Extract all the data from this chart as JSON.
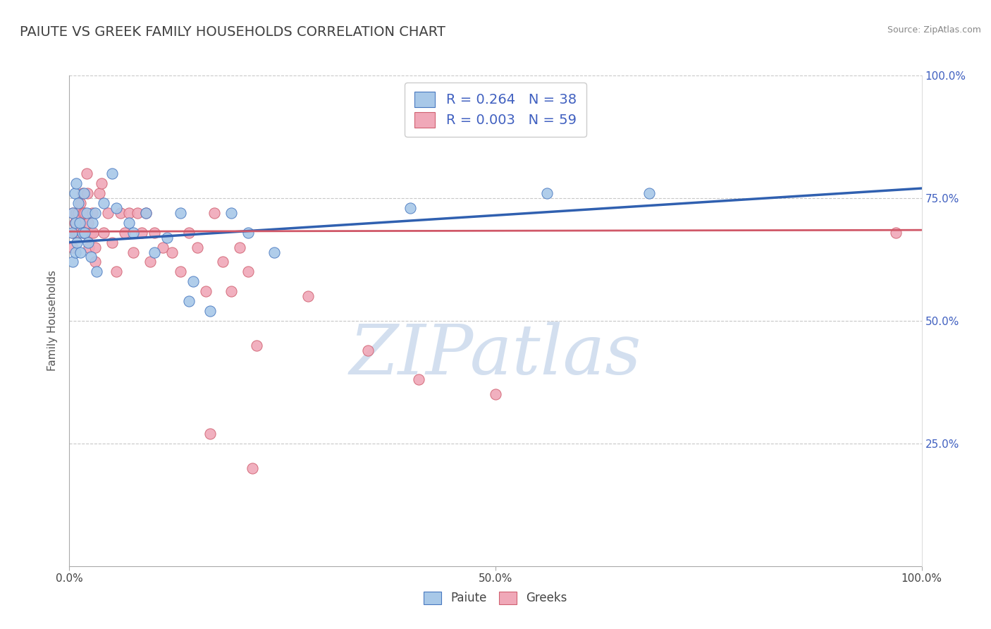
{
  "title": "PAIUTE VS GREEK FAMILY HOUSEHOLDS CORRELATION CHART",
  "source": "Source: ZipAtlas.com",
  "ylabel": "Family Households",
  "xlim": [
    0.0,
    1.0
  ],
  "ylim": [
    0.0,
    1.0
  ],
  "xticks": [
    0.0,
    0.5,
    1.0
  ],
  "xtick_labels": [
    "0.0%",
    "50.0%",
    "100.0%"
  ],
  "right_yticks": [
    0.25,
    0.5,
    0.75,
    1.0
  ],
  "right_ytick_labels": [
    "25.0%",
    "50.0%",
    "75.0%",
    "100.0%"
  ],
  "legend_line1": "R = 0.264   N = 38",
  "legend_line2": "R = 0.003   N = 59",
  "bottom_legend_labels": [
    "Paiute",
    "Greeks"
  ],
  "blue_color": "#a8c8e8",
  "pink_color": "#f0a8b8",
  "blue_edge_color": "#4878c0",
  "pink_edge_color": "#d06070",
  "blue_line_color": "#3060b0",
  "pink_line_color": "#d05868",
  "blue_scatter": [
    [
      0.003,
      0.68
    ],
    [
      0.004,
      0.62
    ],
    [
      0.004,
      0.72
    ],
    [
      0.006,
      0.76
    ],
    [
      0.007,
      0.7
    ],
    [
      0.007,
      0.64
    ],
    [
      0.008,
      0.78
    ],
    [
      0.009,
      0.66
    ],
    [
      0.01,
      0.74
    ],
    [
      0.012,
      0.7
    ],
    [
      0.013,
      0.64
    ],
    [
      0.015,
      0.68
    ],
    [
      0.017,
      0.76
    ],
    [
      0.018,
      0.68
    ],
    [
      0.02,
      0.72
    ],
    [
      0.022,
      0.66
    ],
    [
      0.025,
      0.63
    ],
    [
      0.027,
      0.7
    ],
    [
      0.03,
      0.72
    ],
    [
      0.032,
      0.6
    ],
    [
      0.04,
      0.74
    ],
    [
      0.05,
      0.8
    ],
    [
      0.055,
      0.73
    ],
    [
      0.07,
      0.7
    ],
    [
      0.075,
      0.68
    ],
    [
      0.09,
      0.72
    ],
    [
      0.1,
      0.64
    ],
    [
      0.115,
      0.67
    ],
    [
      0.13,
      0.72
    ],
    [
      0.14,
      0.54
    ],
    [
      0.145,
      0.58
    ],
    [
      0.165,
      0.52
    ],
    [
      0.19,
      0.72
    ],
    [
      0.21,
      0.68
    ],
    [
      0.24,
      0.64
    ],
    [
      0.4,
      0.73
    ],
    [
      0.56,
      0.76
    ],
    [
      0.68,
      0.76
    ]
  ],
  "pink_scatter": [
    [
      0.004,
      0.68
    ],
    [
      0.004,
      0.65
    ],
    [
      0.004,
      0.72
    ],
    [
      0.006,
      0.7
    ],
    [
      0.007,
      0.68
    ],
    [
      0.008,
      0.72
    ],
    [
      0.009,
      0.68
    ],
    [
      0.01,
      0.72
    ],
    [
      0.011,
      0.68
    ],
    [
      0.013,
      0.74
    ],
    [
      0.014,
      0.7
    ],
    [
      0.015,
      0.76
    ],
    [
      0.016,
      0.72
    ],
    [
      0.017,
      0.68
    ],
    [
      0.018,
      0.72
    ],
    [
      0.019,
      0.68
    ],
    [
      0.02,
      0.8
    ],
    [
      0.021,
      0.76
    ],
    [
      0.022,
      0.7
    ],
    [
      0.023,
      0.65
    ],
    [
      0.025,
      0.68
    ],
    [
      0.027,
      0.72
    ],
    [
      0.028,
      0.68
    ],
    [
      0.03,
      0.62
    ],
    [
      0.03,
      0.65
    ],
    [
      0.035,
      0.76
    ],
    [
      0.038,
      0.78
    ],
    [
      0.04,
      0.68
    ],
    [
      0.045,
      0.72
    ],
    [
      0.05,
      0.66
    ],
    [
      0.055,
      0.6
    ],
    [
      0.06,
      0.72
    ],
    [
      0.065,
      0.68
    ],
    [
      0.07,
      0.72
    ],
    [
      0.075,
      0.64
    ],
    [
      0.08,
      0.72
    ],
    [
      0.085,
      0.68
    ],
    [
      0.09,
      0.72
    ],
    [
      0.095,
      0.62
    ],
    [
      0.1,
      0.68
    ],
    [
      0.11,
      0.65
    ],
    [
      0.12,
      0.64
    ],
    [
      0.13,
      0.6
    ],
    [
      0.14,
      0.68
    ],
    [
      0.15,
      0.65
    ],
    [
      0.16,
      0.56
    ],
    [
      0.17,
      0.72
    ],
    [
      0.18,
      0.62
    ],
    [
      0.19,
      0.56
    ],
    [
      0.2,
      0.65
    ],
    [
      0.21,
      0.6
    ],
    [
      0.22,
      0.45
    ],
    [
      0.28,
      0.55
    ],
    [
      0.35,
      0.44
    ],
    [
      0.41,
      0.38
    ],
    [
      0.165,
      0.27
    ],
    [
      0.215,
      0.2
    ],
    [
      0.5,
      0.35
    ],
    [
      0.97,
      0.68
    ]
  ],
  "blue_line": [
    [
      0.0,
      0.66
    ],
    [
      1.0,
      0.77
    ]
  ],
  "pink_line": [
    [
      0.0,
      0.682
    ],
    [
      1.0,
      0.685
    ]
  ],
  "watermark": "ZIPatlas",
  "watermark_color": "#c8d8ec",
  "background_color": "#ffffff",
  "grid_color": "#c8c8c8",
  "title_color": "#404040",
  "title_fontsize": 14,
  "axis_label_color": "#555555",
  "right_tick_color": "#4060c0",
  "legend_R_color": "#4060c0",
  "marker_size": 120
}
